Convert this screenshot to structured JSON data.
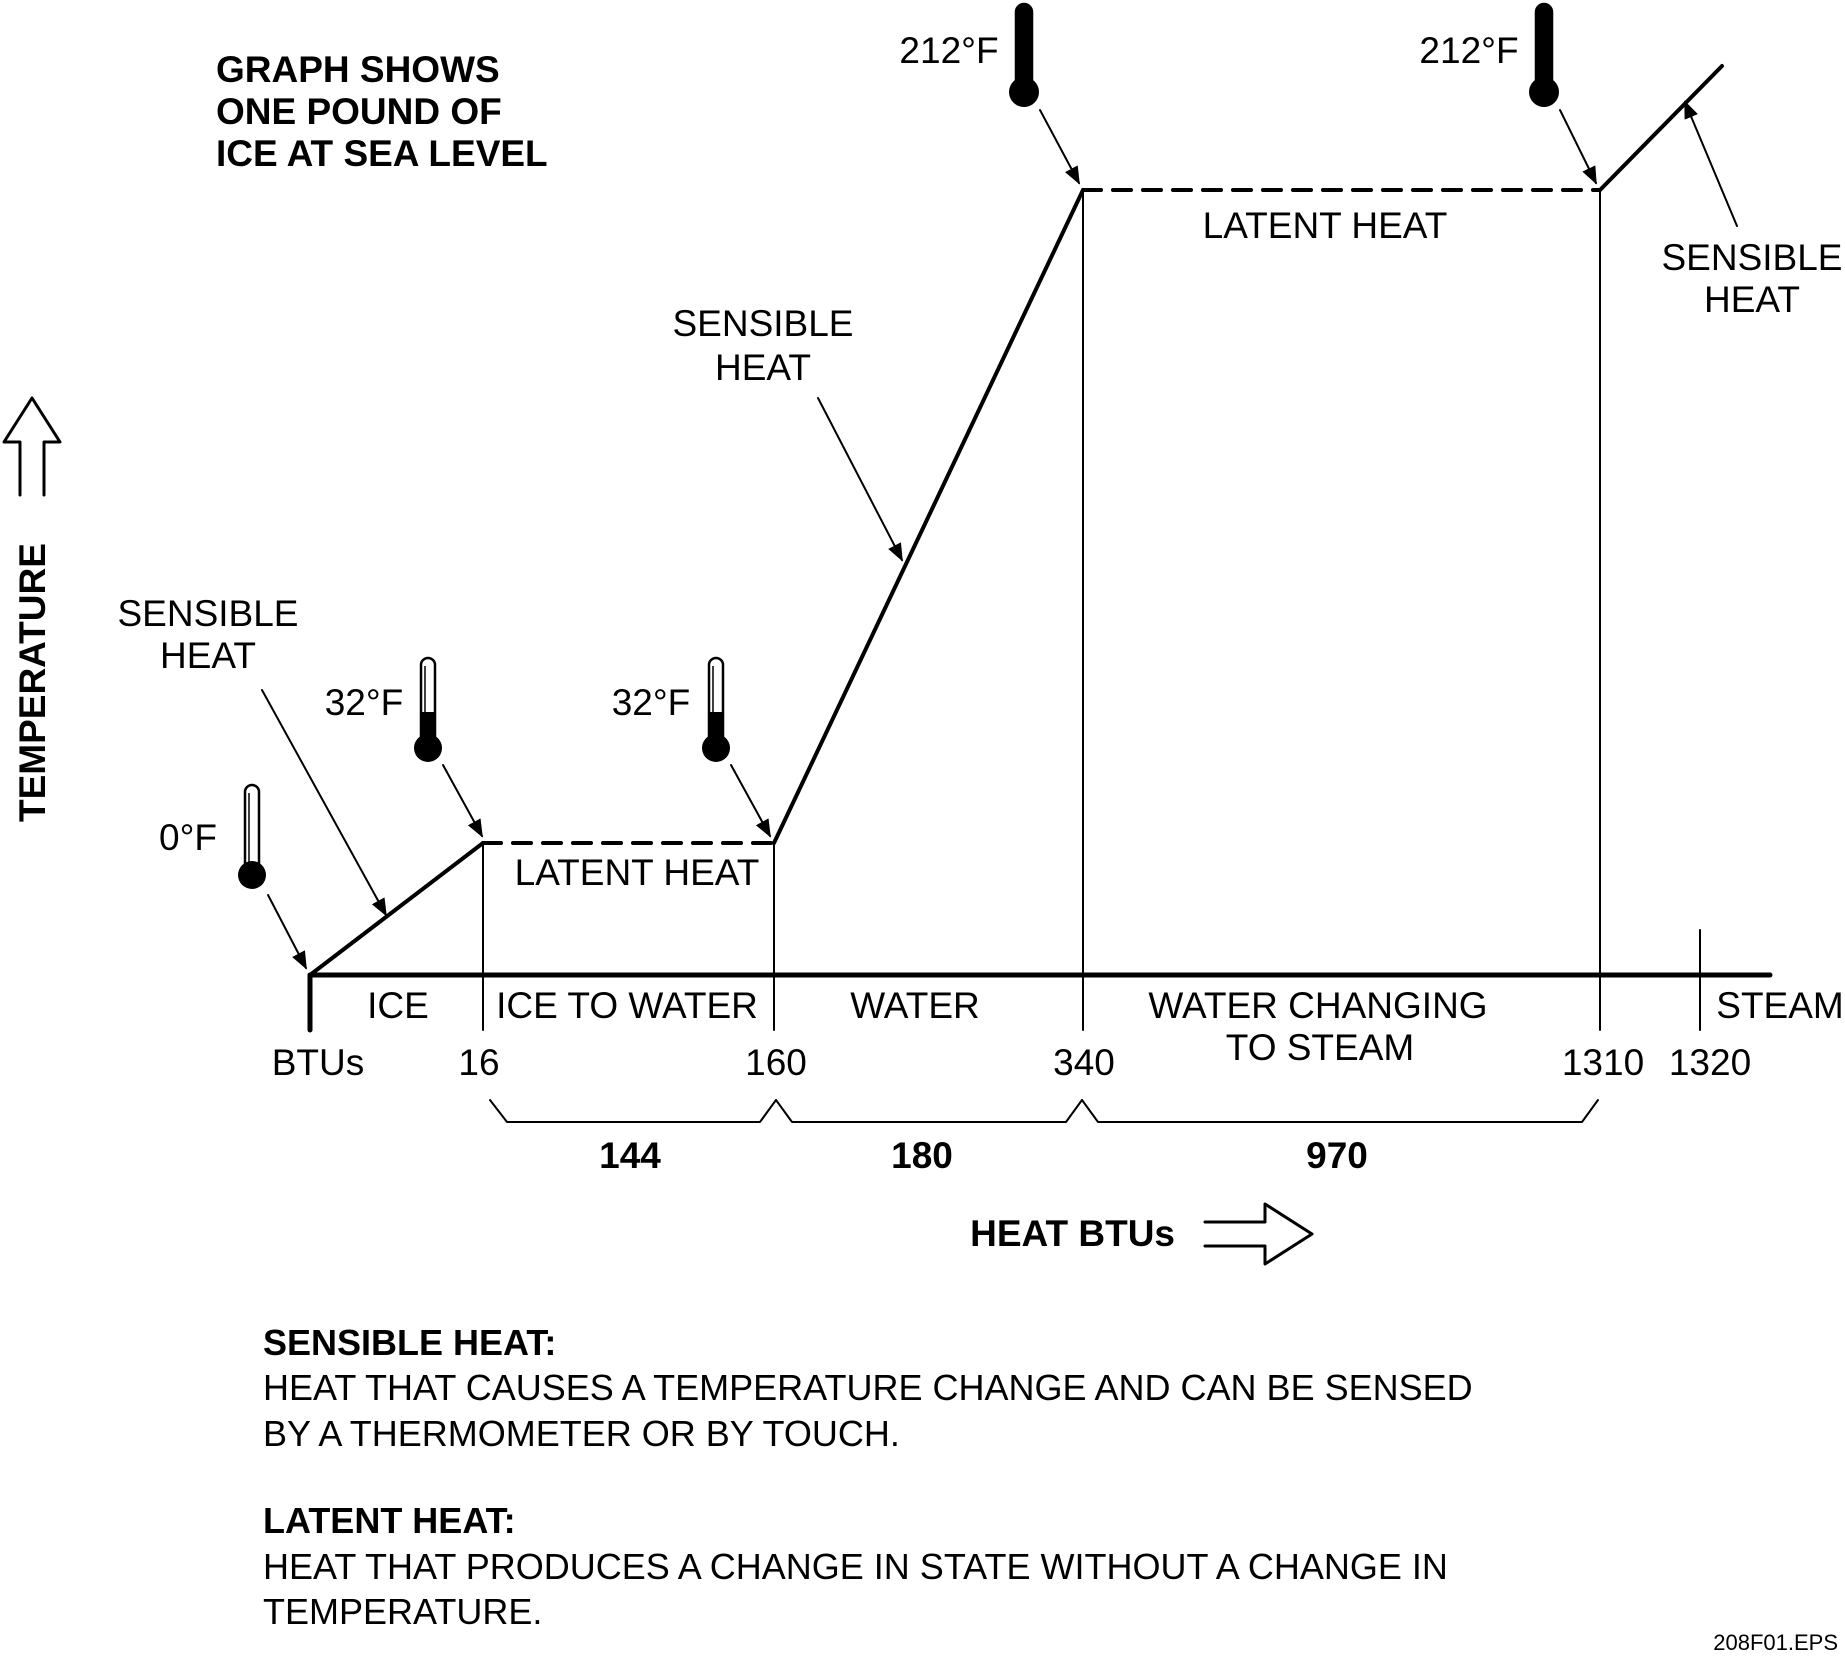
{
  "note": {
    "line1": "GRAPH SHOWS",
    "line2": "ONE POUND OF",
    "line3": "ICE AT SEA LEVEL"
  },
  "axes": {
    "y_label": "TEMPERATURE",
    "x_label": "HEAT BTUs",
    "x_origin_label": "BTUs"
  },
  "ticks": [
    "16",
    "160",
    "340",
    "1310",
    "1320"
  ],
  "phases": {
    "ice": "ICE",
    "ice_to_water": "ICE TO WATER",
    "water": "WATER",
    "water_to_steam_1": "WATER CHANGING",
    "water_to_steam_2": "TO STEAM",
    "steam": "STEAM"
  },
  "spans": [
    "144",
    "180",
    "970"
  ],
  "temps": {
    "t0": "0°F",
    "t32a": "32°F",
    "t32b": "32°F",
    "t212a": "212°F",
    "t212b": "212°F"
  },
  "callouts": {
    "sensible1_l1": "SENSIBLE",
    "sensible1_l2": "HEAT",
    "latent1": "LATENT HEAT",
    "sensible2_l1": "SENSIBLE",
    "sensible2_l2": "HEAT",
    "latent2": "LATENT HEAT",
    "sensible3_l1": "SENSIBLE",
    "sensible3_l2": "HEAT"
  },
  "definitions": {
    "sensible_title": "SENSIBLE HEAT:",
    "sensible_line1": "HEAT THAT CAUSES A TEMPERATURE CHANGE AND CAN BE SENSED",
    "sensible_line2": "BY A THERMOMETER OR BY TOUCH.",
    "latent_title": "LATENT HEAT:",
    "latent_line1": "HEAT THAT PRODUCES A CHANGE IN STATE WITHOUT A CHANGE IN",
    "latent_line2": "TEMPERATURE."
  },
  "file_tag": "208F01.EPS"
}
